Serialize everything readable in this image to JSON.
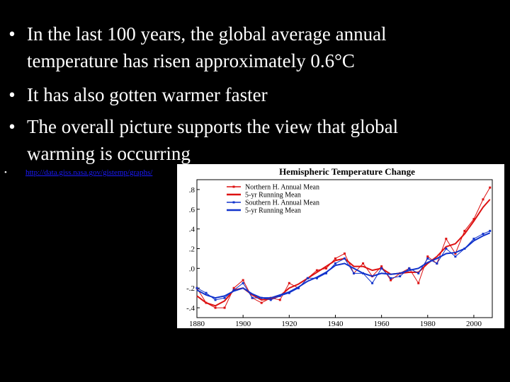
{
  "slide": {
    "bullets": [
      {
        "line1": "In the last 100 years, the global average annual",
        "line2": "temperature has risen approximately 0.6°C"
      },
      {
        "line1": "It has also gotten warmer faster"
      },
      {
        "line1": "The overall picture supports the view that global",
        "line2": "warming is occurring"
      }
    ],
    "bullet_glyph": "•",
    "link_text": "http://data.giss.nasa.gov/gistemp/graphs/"
  },
  "colors": {
    "background": "#000000",
    "text": "#ffffff",
    "link": "#1a1aff",
    "northern": "#dd1111",
    "southern": "#1133cc"
  },
  "chart_data": {
    "type": "line",
    "title": "Hemispheric Temperature Change",
    "xlim": [
      1880,
      2008
    ],
    "ylim": [
      -0.5,
      0.9
    ],
    "x_ticks": [
      1880,
      1900,
      1920,
      1940,
      1960,
      1980,
      2000
    ],
    "y_ticks": [
      -0.4,
      -0.2,
      0.0,
      0.2,
      0.4,
      0.6,
      0.8
    ],
    "y_tick_labels": [
      "-.4",
      "-.2",
      ".0",
      ".2",
      ".4",
      ".6",
      ".8"
    ],
    "grid": true,
    "legend_position": "top-left",
    "legend": [
      "Northern H. Annual Mean",
      "5-yr Running Mean",
      "Southern H. Annual Mean",
      "5-yr Running Mean"
    ],
    "x": [
      1880,
      1884,
      1888,
      1892,
      1896,
      1900,
      1904,
      1908,
      1912,
      1916,
      1920,
      1924,
      1928,
      1932,
      1936,
      1940,
      1944,
      1948,
      1952,
      1956,
      1960,
      1964,
      1968,
      1972,
      1976,
      1980,
      1984,
      1988,
      1992,
      1996,
      2000,
      2004,
      2007
    ],
    "series": [
      {
        "name": "Northern H. Annual Mean",
        "values": [
          -0.2,
          -0.35,
          -0.4,
          -0.4,
          -0.2,
          -0.12,
          -0.3,
          -0.35,
          -0.3,
          -0.32,
          -0.15,
          -0.2,
          -0.1,
          -0.02,
          0.0,
          0.1,
          0.15,
          -0.05,
          0.05,
          -0.08,
          0.02,
          -0.12,
          -0.05,
          0.0,
          -0.15,
          0.12,
          0.05,
          0.3,
          0.15,
          0.38,
          0.5,
          0.7,
          0.82
        ]
      },
      {
        "name": "5-yr Running Mean",
        "values": [
          -0.28,
          -0.35,
          -0.38,
          -0.33,
          -0.22,
          -0.2,
          -0.27,
          -0.32,
          -0.31,
          -0.28,
          -0.2,
          -0.16,
          -0.1,
          -0.04,
          0.02,
          0.08,
          0.1,
          0.02,
          0.02,
          -0.02,
          0.0,
          -0.06,
          -0.05,
          -0.04,
          -0.04,
          0.05,
          0.12,
          0.22,
          0.25,
          0.35,
          0.48,
          0.62,
          0.7
        ]
      },
      {
        "name": "Southern H. Annual Mean",
        "values": [
          -0.2,
          -0.25,
          -0.32,
          -0.3,
          -0.22,
          -0.15,
          -0.3,
          -0.3,
          -0.32,
          -0.28,
          -0.25,
          -0.2,
          -0.1,
          -0.1,
          -0.05,
          0.05,
          0.1,
          -0.05,
          -0.05,
          -0.15,
          0.0,
          -0.1,
          -0.08,
          0.0,
          -0.05,
          0.1,
          0.05,
          0.2,
          0.12,
          0.2,
          0.3,
          0.35,
          0.38
        ]
      },
      {
        "name": "5-yr Running Mean",
        "values": [
          -0.22,
          -0.27,
          -0.3,
          -0.28,
          -0.23,
          -0.2,
          -0.26,
          -0.3,
          -0.3,
          -0.27,
          -0.24,
          -0.19,
          -0.13,
          -0.09,
          -0.04,
          0.03,
          0.05,
          0.0,
          -0.05,
          -0.08,
          -0.05,
          -0.06,
          -0.05,
          -0.02,
          0.0,
          0.06,
          0.1,
          0.15,
          0.16,
          0.2,
          0.28,
          0.33,
          0.36
        ]
      }
    ]
  }
}
